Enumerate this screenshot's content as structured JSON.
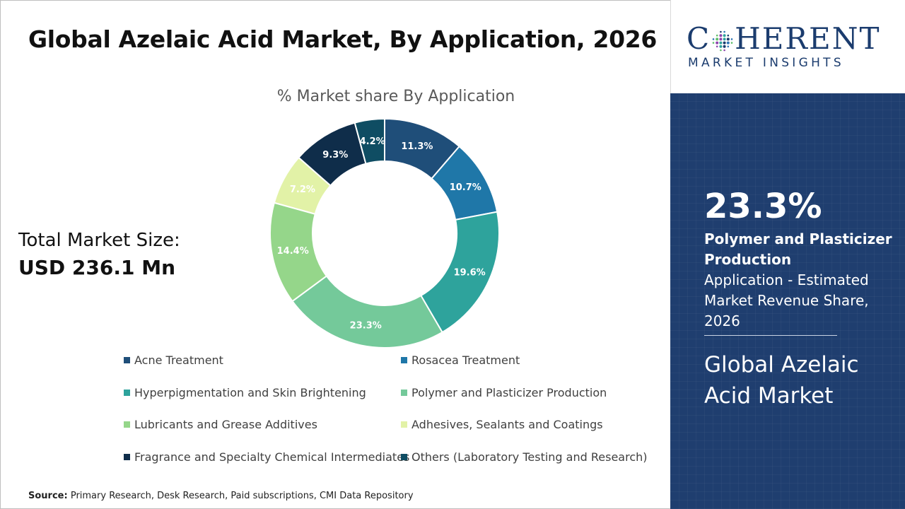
{
  "header": {
    "title": "Global Azelaic Acid Market, By Application, 2026"
  },
  "market_size": {
    "label": "Total Market Size:",
    "value": "USD 236.1 Mn"
  },
  "chart_data": {
    "type": "pie",
    "subtype": "donut",
    "title": "% Market share By Application",
    "categories": [
      "Acne Treatment",
      "Rosacea Treatment",
      "Hyperpigmentation and Skin Brightening",
      "Polymer and Plasticizer Production",
      "Lubricants and Grease Additives",
      "Adhesives, Sealants and Coatings",
      "Fragrance and Specialty Chemical Intermediates",
      "Others (Laboratory Testing and Research)"
    ],
    "values": [
      11.3,
      10.7,
      19.6,
      23.3,
      14.4,
      7.2,
      9.3,
      4.2
    ],
    "labels": [
      "11.3%",
      "10.7%",
      "19.6%",
      "23.3%",
      "14.4%",
      "7.2%",
      "9.3%",
      "4.2%"
    ],
    "colors": [
      "#1f4e79",
      "#1f77a8",
      "#2ea39c",
      "#74c99a",
      "#95d68a",
      "#e2f2a7",
      "#0f2d4a",
      "#0f4d63"
    ],
    "label_colors": [
      "#ffffff",
      "#ffffff",
      "#ffffff",
      "#ffffff",
      "#ffffff",
      "#ffffff",
      "#ffffff",
      "#ffffff"
    ],
    "legend_position": "bottom"
  },
  "source": {
    "label": "Source:",
    "text": "Primary Research, Desk Research, Paid subscriptions, CMI Data Repository"
  },
  "logo": {
    "main": "COHERENT",
    "main_first": "C",
    "main_rest": "HERENT",
    "sub": "MARKET INSIGHTS"
  },
  "highlight": {
    "percent": "23.3%",
    "segment": "Polymer and Plasticizer Production",
    "description": "Application - Estimated Market Revenue Share, 2026",
    "market": "Global Azelaic Acid Market"
  },
  "colors": {
    "sidebar_bg": "#1f3e6f",
    "brand": "#1b3c6e"
  }
}
